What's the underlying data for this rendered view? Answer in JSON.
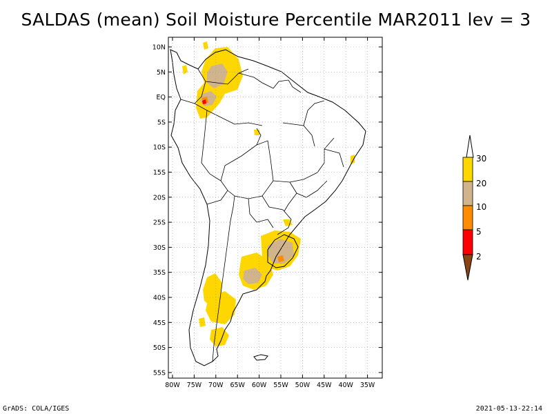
{
  "title": "SALDAS (mean) Soil Moisture Percentile MAR2011 lev = 3",
  "footer": {
    "left": "GrADS: COLA/IGES",
    "right": "2021-05-13-22:14"
  },
  "map": {
    "lat_labels": [
      "10N",
      "5N",
      "EQ",
      "5S",
      "10S",
      "15S",
      "20S",
      "25S",
      "30S",
      "35S",
      "40S",
      "45S",
      "50S",
      "55S"
    ],
    "lon_labels": [
      "80W",
      "75W",
      "70W",
      "65W",
      "60W",
      "55W",
      "50W",
      "45W",
      "40W",
      "35W"
    ]
  },
  "legend": {
    "labels": [
      "30",
      "20",
      "10",
      "5",
      "2"
    ],
    "colors": {
      "over30": "#ffffff",
      "c20_30": "#ffd700",
      "c10_20": "#d2b48c",
      "c5_10": "#ff8c00",
      "c2_5": "#ff0000",
      "under2": "#8b4513"
    }
  },
  "colors": {
    "yellow": "#ffd700",
    "tan": "#d2b48c",
    "orange": "#ff8c00",
    "red": "#ff0000"
  }
}
